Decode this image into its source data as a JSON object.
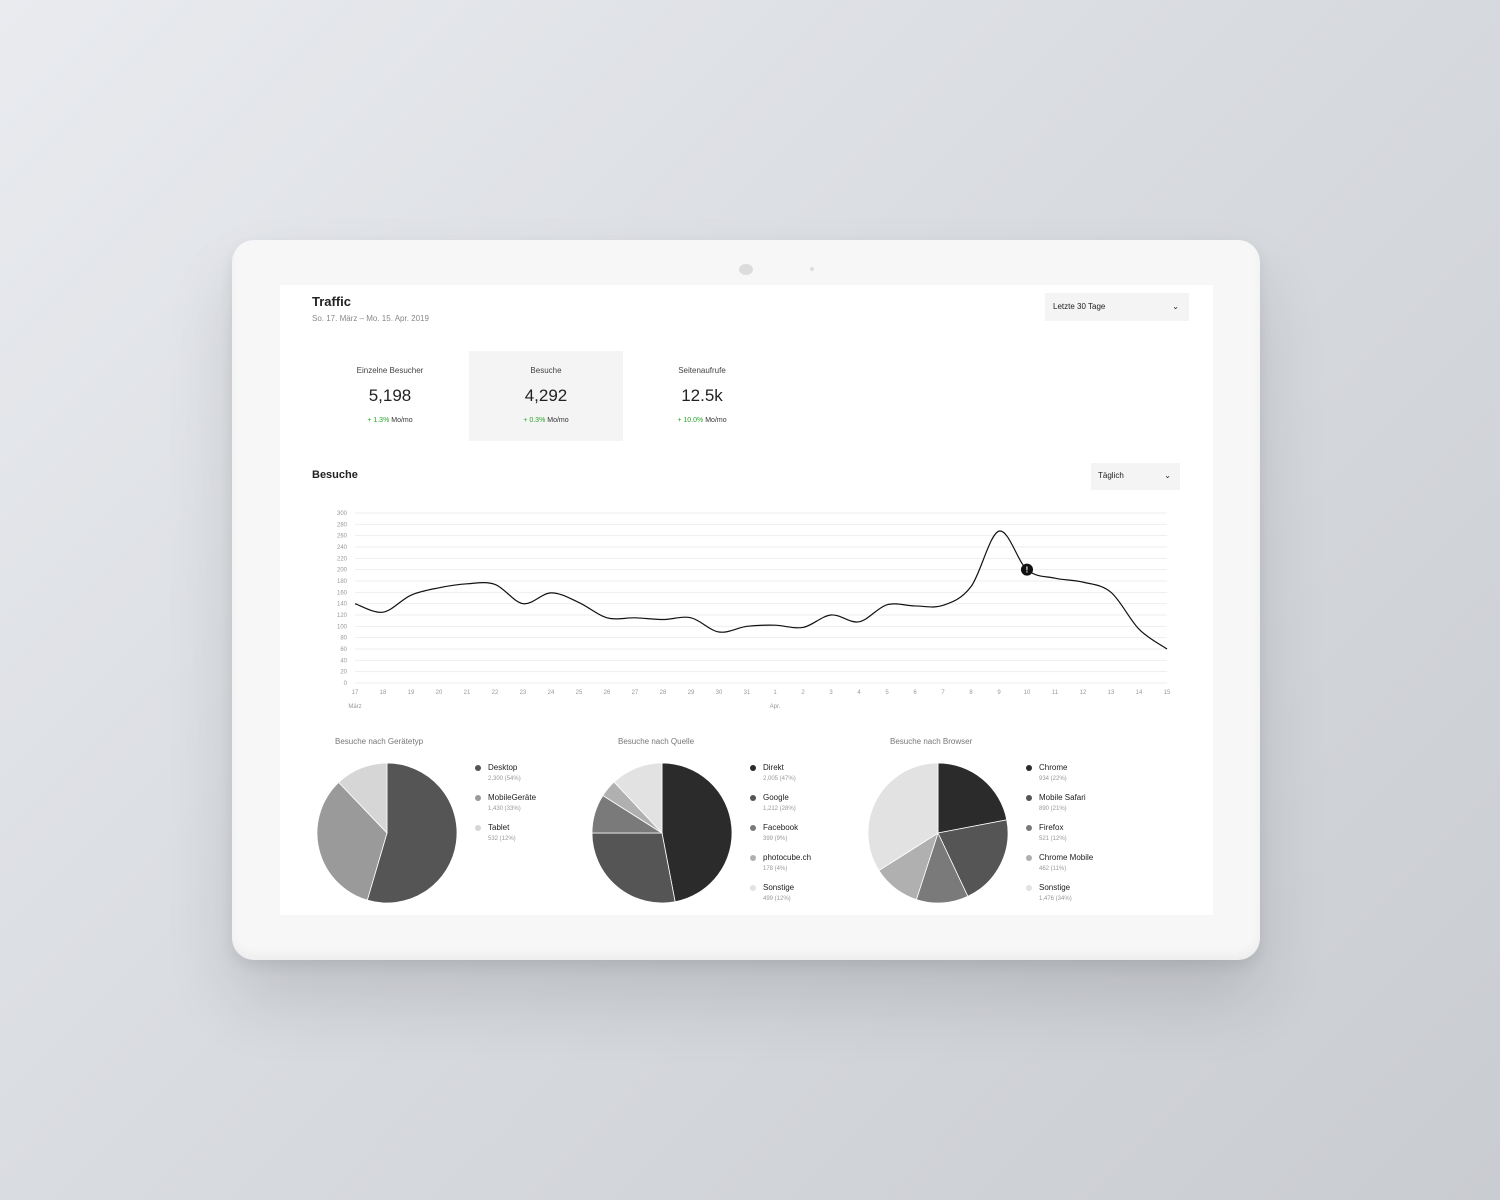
{
  "header": {
    "title": "Traffic",
    "date_range": "So. 17. März – Mo. 15. Apr. 2019"
  },
  "range_select": {
    "value": "Letzte 30 Tage"
  },
  "stats": [
    {
      "label": "Einzelne Besucher",
      "value": "5,198",
      "change": "+ 1.3%",
      "period": "Mo/mo"
    },
    {
      "label": "Besuche",
      "value": "4,292",
      "change": "+ 0.3%",
      "period": "Mo/mo"
    },
    {
      "label": "Seitenaufrufe",
      "value": "12.5k",
      "change": "+ 10.0%",
      "period": "Mo/mo"
    }
  ],
  "visits_section": {
    "title": "Besuche",
    "interval": "Täglich"
  },
  "colors": {
    "positive": "#2aa52a",
    "line": "#111111",
    "grid": "#eeeeee"
  },
  "icons": {
    "dropdown": "chevron-down-icon",
    "marker": "exclamation-icon"
  },
  "chart_data": {
    "type": "line",
    "x": [
      "17",
      "18",
      "19",
      "20",
      "21",
      "22",
      "23",
      "24",
      "25",
      "26",
      "27",
      "28",
      "29",
      "30",
      "31",
      "1",
      "2",
      "3",
      "4",
      "5",
      "6",
      "7",
      "8",
      "9",
      "10",
      "11",
      "12",
      "13",
      "14",
      "15"
    ],
    "x_group_labels": [
      {
        "at": "17",
        "label": "März"
      },
      {
        "at": "1",
        "label": "Apr."
      }
    ],
    "series": [
      {
        "values": [
          140,
          125,
          155,
          168,
          175,
          174,
          140,
          159,
          142,
          115,
          115,
          112,
          115,
          90,
          100,
          102,
          98,
          120,
          108,
          138,
          136,
          137,
          170,
          268,
          200,
          185,
          178,
          160,
          95,
          60
        ]
      }
    ],
    "marked_point": "10",
    "yticks": [
      0,
      20,
      40,
      60,
      80,
      100,
      120,
      140,
      160,
      180,
      200,
      220,
      240,
      260,
      280,
      300
    ],
    "ylim": [
      0,
      300
    ],
    "grid": true
  },
  "pies": [
    {
      "title": "Besuche nach Gerätetyp",
      "chart_data": {
        "type": "pie",
        "slices": [
          {
            "label": "Desktop",
            "value_text": "2,300 (54%)",
            "value": 54,
            "color": "#555555"
          },
          {
            "label": "MobileGeräte",
            "value_text": "1,430 (33%)",
            "value": 33,
            "color": "#9a9a9a"
          },
          {
            "label": "Tablet",
            "value_text": "532 (12%)",
            "value": 12,
            "color": "#d6d6d6"
          }
        ]
      }
    },
    {
      "title": "Besuche nach Quelle",
      "chart_data": {
        "type": "pie",
        "slices": [
          {
            "label": "Direkt",
            "value_text": "2,005 (47%)",
            "value": 47,
            "color": "#2b2b2b"
          },
          {
            "label": "Google",
            "value_text": "1,212 (28%)",
            "value": 28,
            "color": "#555555"
          },
          {
            "label": "Facebook",
            "value_text": "399 (9%)",
            "value": 9,
            "color": "#7a7a7a"
          },
          {
            "label": "photocube.ch",
            "value_text": "178 (4%)",
            "value": 4,
            "color": "#b0b0b0"
          },
          {
            "label": "Sonstige",
            "value_text": "499 (12%)",
            "value": 12,
            "color": "#e2e2e2"
          }
        ]
      }
    },
    {
      "title": "Besuche nach Browser",
      "chart_data": {
        "type": "pie",
        "slices": [
          {
            "label": "Chrome",
            "value_text": "934 (22%)",
            "value": 22,
            "color": "#2b2b2b"
          },
          {
            "label": "Mobile Safari",
            "value_text": "890 (21%)",
            "value": 21,
            "color": "#555555"
          },
          {
            "label": "Firefox",
            "value_text": "521 (12%)",
            "value": 12,
            "color": "#7a7a7a"
          },
          {
            "label": "Chrome Mobile",
            "value_text": "462 (11%)",
            "value": 11,
            "color": "#b0b0b0"
          },
          {
            "label": "Sonstige",
            "value_text": "1,476 (34%)",
            "value": 34,
            "color": "#e2e2e2"
          }
        ]
      }
    }
  ]
}
